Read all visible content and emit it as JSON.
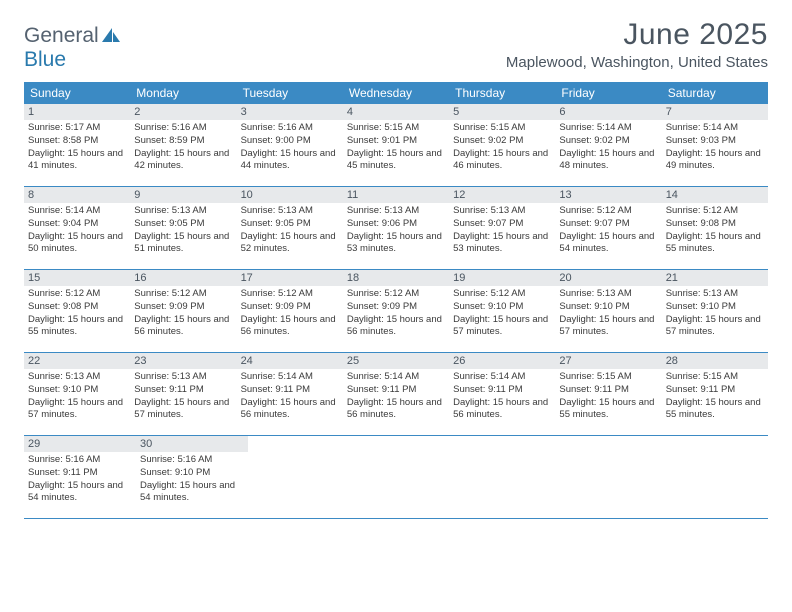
{
  "logo": {
    "text1": "General",
    "text2": "Blue",
    "color_general": "#556270",
    "color_blue": "#2a7aad"
  },
  "title": "June 2025",
  "location": "Maplewood, Washington, United States",
  "header_bg": "#3b8ac4",
  "daynum_bg": "#e7e9eb",
  "border_color": "#3b8ac4",
  "day_names": [
    "Sunday",
    "Monday",
    "Tuesday",
    "Wednesday",
    "Thursday",
    "Friday",
    "Saturday"
  ],
  "weeks": [
    [
      {
        "n": "1",
        "sunrise": "Sunrise: 5:17 AM",
        "sunset": "Sunset: 8:58 PM",
        "daylight": "Daylight: 15 hours and 41 minutes."
      },
      {
        "n": "2",
        "sunrise": "Sunrise: 5:16 AM",
        "sunset": "Sunset: 8:59 PM",
        "daylight": "Daylight: 15 hours and 42 minutes."
      },
      {
        "n": "3",
        "sunrise": "Sunrise: 5:16 AM",
        "sunset": "Sunset: 9:00 PM",
        "daylight": "Daylight: 15 hours and 44 minutes."
      },
      {
        "n": "4",
        "sunrise": "Sunrise: 5:15 AM",
        "sunset": "Sunset: 9:01 PM",
        "daylight": "Daylight: 15 hours and 45 minutes."
      },
      {
        "n": "5",
        "sunrise": "Sunrise: 5:15 AM",
        "sunset": "Sunset: 9:02 PM",
        "daylight": "Daylight: 15 hours and 46 minutes."
      },
      {
        "n": "6",
        "sunrise": "Sunrise: 5:14 AM",
        "sunset": "Sunset: 9:02 PM",
        "daylight": "Daylight: 15 hours and 48 minutes."
      },
      {
        "n": "7",
        "sunrise": "Sunrise: 5:14 AM",
        "sunset": "Sunset: 9:03 PM",
        "daylight": "Daylight: 15 hours and 49 minutes."
      }
    ],
    [
      {
        "n": "8",
        "sunrise": "Sunrise: 5:14 AM",
        "sunset": "Sunset: 9:04 PM",
        "daylight": "Daylight: 15 hours and 50 minutes."
      },
      {
        "n": "9",
        "sunrise": "Sunrise: 5:13 AM",
        "sunset": "Sunset: 9:05 PM",
        "daylight": "Daylight: 15 hours and 51 minutes."
      },
      {
        "n": "10",
        "sunrise": "Sunrise: 5:13 AM",
        "sunset": "Sunset: 9:05 PM",
        "daylight": "Daylight: 15 hours and 52 minutes."
      },
      {
        "n": "11",
        "sunrise": "Sunrise: 5:13 AM",
        "sunset": "Sunset: 9:06 PM",
        "daylight": "Daylight: 15 hours and 53 minutes."
      },
      {
        "n": "12",
        "sunrise": "Sunrise: 5:13 AM",
        "sunset": "Sunset: 9:07 PM",
        "daylight": "Daylight: 15 hours and 53 minutes."
      },
      {
        "n": "13",
        "sunrise": "Sunrise: 5:12 AM",
        "sunset": "Sunset: 9:07 PM",
        "daylight": "Daylight: 15 hours and 54 minutes."
      },
      {
        "n": "14",
        "sunrise": "Sunrise: 5:12 AM",
        "sunset": "Sunset: 9:08 PM",
        "daylight": "Daylight: 15 hours and 55 minutes."
      }
    ],
    [
      {
        "n": "15",
        "sunrise": "Sunrise: 5:12 AM",
        "sunset": "Sunset: 9:08 PM",
        "daylight": "Daylight: 15 hours and 55 minutes."
      },
      {
        "n": "16",
        "sunrise": "Sunrise: 5:12 AM",
        "sunset": "Sunset: 9:09 PM",
        "daylight": "Daylight: 15 hours and 56 minutes."
      },
      {
        "n": "17",
        "sunrise": "Sunrise: 5:12 AM",
        "sunset": "Sunset: 9:09 PM",
        "daylight": "Daylight: 15 hours and 56 minutes."
      },
      {
        "n": "18",
        "sunrise": "Sunrise: 5:12 AM",
        "sunset": "Sunset: 9:09 PM",
        "daylight": "Daylight: 15 hours and 56 minutes."
      },
      {
        "n": "19",
        "sunrise": "Sunrise: 5:12 AM",
        "sunset": "Sunset: 9:10 PM",
        "daylight": "Daylight: 15 hours and 57 minutes."
      },
      {
        "n": "20",
        "sunrise": "Sunrise: 5:13 AM",
        "sunset": "Sunset: 9:10 PM",
        "daylight": "Daylight: 15 hours and 57 minutes."
      },
      {
        "n": "21",
        "sunrise": "Sunrise: 5:13 AM",
        "sunset": "Sunset: 9:10 PM",
        "daylight": "Daylight: 15 hours and 57 minutes."
      }
    ],
    [
      {
        "n": "22",
        "sunrise": "Sunrise: 5:13 AM",
        "sunset": "Sunset: 9:10 PM",
        "daylight": "Daylight: 15 hours and 57 minutes."
      },
      {
        "n": "23",
        "sunrise": "Sunrise: 5:13 AM",
        "sunset": "Sunset: 9:11 PM",
        "daylight": "Daylight: 15 hours and 57 minutes."
      },
      {
        "n": "24",
        "sunrise": "Sunrise: 5:14 AM",
        "sunset": "Sunset: 9:11 PM",
        "daylight": "Daylight: 15 hours and 56 minutes."
      },
      {
        "n": "25",
        "sunrise": "Sunrise: 5:14 AM",
        "sunset": "Sunset: 9:11 PM",
        "daylight": "Daylight: 15 hours and 56 minutes."
      },
      {
        "n": "26",
        "sunrise": "Sunrise: 5:14 AM",
        "sunset": "Sunset: 9:11 PM",
        "daylight": "Daylight: 15 hours and 56 minutes."
      },
      {
        "n": "27",
        "sunrise": "Sunrise: 5:15 AM",
        "sunset": "Sunset: 9:11 PM",
        "daylight": "Daylight: 15 hours and 55 minutes."
      },
      {
        "n": "28",
        "sunrise": "Sunrise: 5:15 AM",
        "sunset": "Sunset: 9:11 PM",
        "daylight": "Daylight: 15 hours and 55 minutes."
      }
    ],
    [
      {
        "n": "29",
        "sunrise": "Sunrise: 5:16 AM",
        "sunset": "Sunset: 9:11 PM",
        "daylight": "Daylight: 15 hours and 54 minutes."
      },
      {
        "n": "30",
        "sunrise": "Sunrise: 5:16 AM",
        "sunset": "Sunset: 9:10 PM",
        "daylight": "Daylight: 15 hours and 54 minutes."
      },
      null,
      null,
      null,
      null,
      null
    ]
  ]
}
